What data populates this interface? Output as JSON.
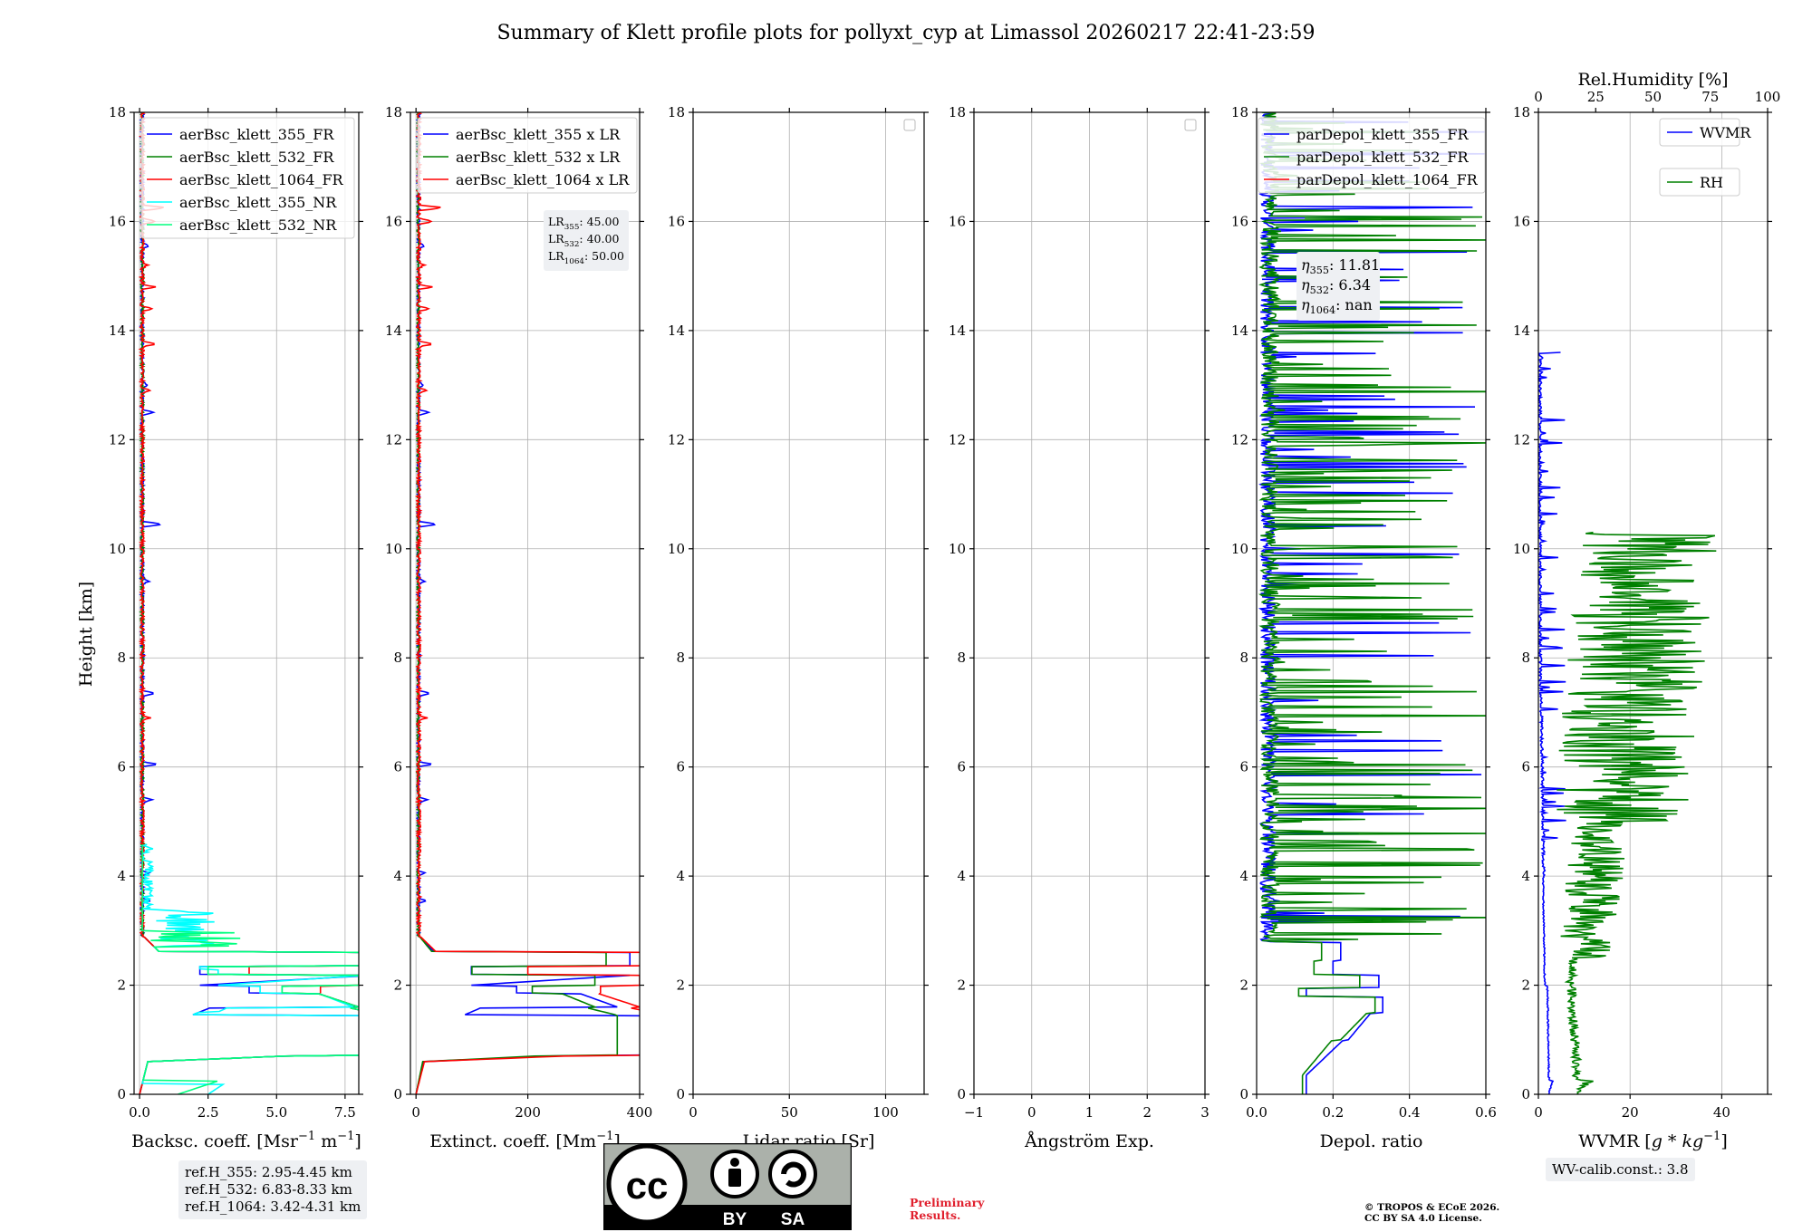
{
  "title": "Summary of Klett profile plots for pollyxt_cyp at Limassol 20260217 22:41-23:59",
  "ylabel": "Height [km]",
  "colors": {
    "c355": "#0000ff",
    "c532": "#008000",
    "c1064": "#ff0000",
    "c355nr": "#00ffff",
    "c532nr": "#00ff7f",
    "c1064nr": "#ffb6c1"
  },
  "chart_data": [
    {
      "type": "line",
      "id": "bsc",
      "xlabel": "Backsc. coeff. [Msr$^{-1}$ m$^{-1}$]",
      "xlabel_text": "Backsc. coeff. [Msr",
      "xlim": [
        -0.2,
        8.0
      ],
      "ylim": [
        0,
        18
      ],
      "xticks": [
        0,
        2.5,
        5.0,
        7.5
      ],
      "xticklabels": [
        "0.0",
        "2.5",
        "5.0",
        "7.5"
      ],
      "yticks": [
        0,
        2,
        4,
        6,
        8,
        10,
        12,
        14,
        16,
        18
      ],
      "yticklabels": [
        "0",
        "2",
        "4",
        "6",
        "8",
        "10",
        "12",
        "14",
        "16",
        "18"
      ],
      "legend": [
        "aerBsc_klett_355_FR",
        "aerBsc_klett_532_FR",
        "aerBsc_klett_1064_FR",
        "aerBsc_klett_355_NR",
        "aerBsc_klett_532_NR"
      ],
      "series": [
        {
          "name": "aerBsc_klett_355_FR",
          "profile": "p355",
          "scale": 1
        },
        {
          "name": "aerBsc_klett_532_FR",
          "profile": "p532",
          "scale": 1
        },
        {
          "name": "aerBsc_klett_1064_FR",
          "profile": "p1064",
          "scale": 1
        },
        {
          "name": "aerBsc_klett_355_NR",
          "profile": "nr355",
          "scale": 1
        },
        {
          "name": "aerBsc_klett_532_NR",
          "profile": "nr532",
          "scale": 1
        }
      ]
    },
    {
      "type": "line",
      "id": "ext",
      "xlabel": "Extinct. coeff. [Mm$^{-1}$]",
      "xlabel_text": "Extinct. coeff. [Mm",
      "xlim": [
        -10,
        400
      ],
      "ylim": [
        0,
        18
      ],
      "xticks": [
        0,
        200,
        400
      ],
      "xticklabels": [
        "0",
        "200",
        "400"
      ],
      "yticks": [
        0,
        2,
        4,
        6,
        8,
        10,
        12,
        14,
        16,
        18
      ],
      "yticklabels": [
        "0",
        "2",
        "4",
        "6",
        "8",
        "10",
        "12",
        "14",
        "16",
        "18"
      ],
      "legend": [
        "aerBsc_klett_355 x LR",
        "aerBsc_klett_532 x LR",
        "aerBsc_klett_1064 x LR"
      ],
      "annotation": [
        {
          "name": "LR",
          "sub": "355",
          "val": ": 45.00"
        },
        {
          "name": "LR",
          "sub": "532",
          "val": ": 40.00"
        },
        {
          "name": "LR",
          "sub": "1064",
          "val": ": 50.00"
        }
      ],
      "series": [
        {
          "name": "aerBsc_klett_355 x LR",
          "profile": "p355",
          "scale": 45
        },
        {
          "name": "aerBsc_klett_532 x LR",
          "profile": "p532",
          "scale": 40
        },
        {
          "name": "aerBsc_klett_1064 x LR",
          "profile": "p1064",
          "scale": 50
        }
      ]
    },
    {
      "type": "line",
      "id": "lr",
      "xlabel": "Lidar ratio [Sr]",
      "xlim": [
        0,
        120
      ],
      "ylim": [
        0,
        18
      ],
      "xticks": [
        0,
        50,
        100
      ],
      "xticklabels": [
        "0",
        "50",
        "100"
      ],
      "yticks": [
        0,
        2,
        4,
        6,
        8,
        10,
        12,
        14,
        16,
        18
      ],
      "yticklabels": [
        "0",
        "2",
        "4",
        "6",
        "8",
        "10",
        "12",
        "14",
        "16",
        "18"
      ],
      "series": []
    },
    {
      "type": "line",
      "id": "ang",
      "xlabel": "Ångström Exp.",
      "xlim": [
        -1,
        3
      ],
      "ylim": [
        0,
        18
      ],
      "xticks": [
        -1,
        0,
        1,
        2,
        3
      ],
      "xticklabels": [
        "−1",
        "0",
        "1",
        "2",
        "3"
      ],
      "yticks": [
        0,
        2,
        4,
        6,
        8,
        10,
        12,
        14,
        16,
        18
      ],
      "yticklabels": [
        "0",
        "2",
        "4",
        "6",
        "8",
        "10",
        "12",
        "14",
        "16",
        "18"
      ],
      "series": []
    },
    {
      "type": "line",
      "id": "dep",
      "xlabel": "Depol. ratio",
      "xlim": [
        0,
        0.6
      ],
      "ylim": [
        0,
        18
      ],
      "xticks": [
        0,
        0.2,
        0.4,
        0.6
      ],
      "xticklabels": [
        "0.0",
        "0.2",
        "0.4",
        "0.6"
      ],
      "yticks": [
        0,
        2,
        4,
        6,
        8,
        10,
        12,
        14,
        16,
        18
      ],
      "yticklabels": [
        "0",
        "2",
        "4",
        "6",
        "8",
        "10",
        "12",
        "14",
        "16",
        "18"
      ],
      "legend": [
        "parDepol_klett_355_FR",
        "parDepol_klett_532_FR",
        "parDepol_klett_1064_FR"
      ],
      "annotation": [
        {
          "name": "η",
          "sub": "355",
          "val": ": 11.81"
        },
        {
          "name": "η",
          "sub": "532",
          "val": ": 6.34"
        },
        {
          "name": "η",
          "sub": "1064",
          "val": ": nan"
        }
      ],
      "series": [
        {
          "name": "parDepol_klett_355_FR",
          "profile": "d355"
        },
        {
          "name": "parDepol_klett_532_FR",
          "profile": "d532"
        },
        {
          "name": "parDepol_klett_1064_FR",
          "profile": "none"
        }
      ]
    },
    {
      "type": "line",
      "id": "wv",
      "xlabel": "WVMR [g*kg$^{-1}$]",
      "xlabel_text": "WVMR [",
      "xlim": [
        0,
        50
      ],
      "ylim": [
        0,
        18
      ],
      "xticks": [
        0,
        20,
        40
      ],
      "xticklabels": [
        "0",
        "20",
        "40"
      ],
      "yticks": [
        0,
        2,
        4,
        6,
        8,
        10,
        12,
        14,
        16,
        18
      ],
      "yticklabels": [
        "0",
        "2",
        "4",
        "6",
        "8",
        "10",
        "12",
        "14",
        "16",
        "18"
      ],
      "top_xlabel": "Rel.Humidity [%]",
      "top_xlim": [
        0,
        100
      ],
      "top_xticks": [
        0,
        25,
        50,
        75,
        100
      ],
      "top_xticklabels": [
        "0",
        "25",
        "50",
        "75",
        "100"
      ],
      "legend": [
        "WVMR",
        "RH"
      ],
      "series": [
        {
          "name": "WVMR",
          "profile": "wvmr"
        },
        {
          "name": "RH",
          "profile": "rh"
        }
      ]
    }
  ],
  "ref_heights": [
    "ref.H_355: 2.95-4.45 km",
    "ref.H_532: 6.83-8.33 km",
    "ref.H_1064: 3.42-4.31 km"
  ],
  "wv_calib": "WV-calib.const.: 3.8",
  "preliminary": [
    "Preliminary",
    "Results."
  ],
  "copyright": [
    "© TROPOS & ECoE 2026.",
    "CC BY SA 4.0 License."
  ],
  "license_logo": {
    "main": "cc",
    "labels": [
      "BY",
      "SA"
    ]
  }
}
